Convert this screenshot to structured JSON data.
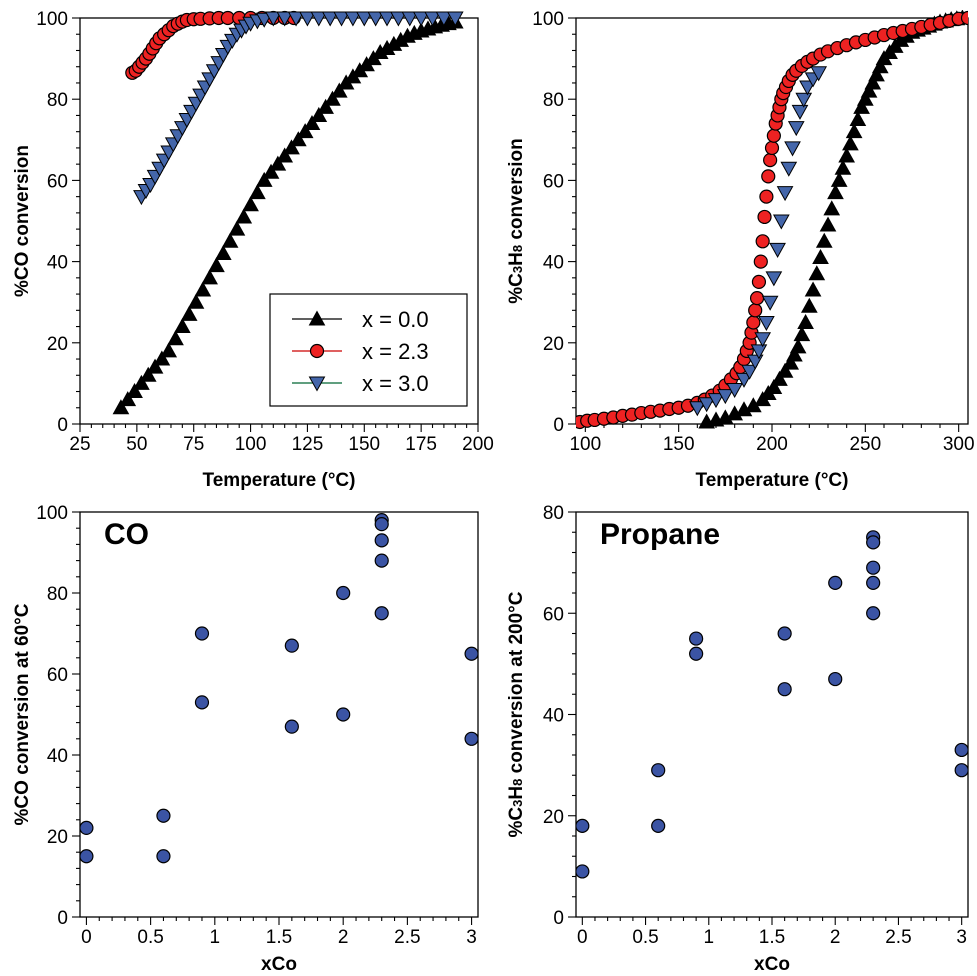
{
  "chart_data": [
    {
      "id": "p1",
      "type": "scatter",
      "xlabel": "Temperature (°C)",
      "ylabel": "%CO conversion",
      "xlim": [
        25,
        200
      ],
      "ylim": [
        0,
        100
      ],
      "xticks": [
        25,
        50,
        75,
        100,
        125,
        150,
        175,
        200
      ],
      "yticks": [
        0,
        20,
        40,
        60,
        80,
        100
      ],
      "xminor": 5,
      "yminor": 5,
      "grid": false,
      "legend_position": "bottom-right",
      "series": [
        {
          "name": "x = 0.0",
          "marker": "triangle-up",
          "color": "#000000",
          "line_color": "#000000",
          "x": [
            43,
            46,
            49,
            52,
            55,
            58,
            61,
            64,
            67,
            70,
            73,
            76,
            79,
            82,
            85,
            88,
            91,
            94,
            97,
            100,
            103,
            106,
            109,
            112,
            115,
            118,
            121,
            124,
            127,
            130,
            133,
            136,
            139,
            142,
            145,
            148,
            151,
            154,
            157,
            160,
            163,
            166,
            169,
            172,
            175,
            178,
            181,
            184,
            187,
            190
          ],
          "y": [
            4,
            6,
            8,
            10,
            12,
            14,
            16,
            18,
            21,
            24,
            27,
            30,
            33,
            36,
            39,
            42,
            45,
            48,
            51,
            54,
            57,
            60,
            62,
            64,
            66,
            68,
            70,
            72,
            74,
            76,
            78,
            80,
            82,
            84,
            85.5,
            87,
            88.5,
            90,
            91.5,
            92.5,
            93.5,
            94.5,
            95.5,
            96.2,
            96.8,
            97.3,
            97.8,
            98.2,
            98.6,
            99
          ]
        },
        {
          "name": "x = 2.3",
          "marker": "circle",
          "color": "#ee2222",
          "line_color": "#cc0000",
          "x": [
            48,
            49.5,
            51,
            52.5,
            54,
            55.5,
            57,
            58.5,
            60,
            62,
            64,
            66,
            68,
            70,
            72,
            75,
            78,
            82,
            86,
            90,
            95,
            100,
            105,
            110,
            115,
            119
          ],
          "y": [
            86.5,
            87,
            88,
            89,
            90,
            91.2,
            92.5,
            93.8,
            95,
            96,
            97,
            98,
            98.6,
            99.1,
            99.5,
            99.7,
            99.8,
            99.9,
            100,
            100,
            100,
            100,
            100,
            100,
            100,
            100
          ]
        },
        {
          "name": "x = 3.0",
          "marker": "triangle-down",
          "color": "#4466aa",
          "line_color": "#006633",
          "x": [
            52,
            54,
            56,
            58,
            60,
            62,
            64,
            66,
            68,
            70,
            72,
            74,
            76,
            78,
            80,
            82,
            84,
            86,
            88,
            90,
            92,
            94,
            96,
            98,
            100,
            103,
            106,
            110,
            115,
            120,
            125,
            130,
            135,
            140,
            145,
            150,
            155,
            160,
            165,
            170,
            175,
            180,
            185,
            190
          ],
          "y": [
            56,
            57.5,
            59,
            61,
            63,
            65,
            67,
            69,
            71,
            73,
            75,
            77,
            79,
            81,
            83,
            85,
            87,
            89,
            91,
            93,
            94.5,
            96,
            97,
            98,
            98.7,
            99.3,
            99.7,
            100,
            100,
            100,
            100,
            100,
            100,
            100,
            100,
            100,
            100,
            100,
            100,
            100,
            100,
            100,
            100,
            100
          ]
        }
      ]
    },
    {
      "id": "p2",
      "type": "scatter",
      "xlabel": "Temperature (°C)",
      "ylabel_parts": [
        "%C",
        "3",
        "H",
        "8",
        " conversion"
      ],
      "xlim": [
        95,
        305
      ],
      "ylim": [
        0,
        100
      ],
      "xticks": [
        100,
        150,
        200,
        250,
        300
      ],
      "yticks": [
        0,
        20,
        40,
        60,
        80,
        100
      ],
      "xminor": 5,
      "yminor": 5,
      "grid": false,
      "series": [
        {
          "name": "x = 0.0",
          "marker": "triangle-up",
          "color": "#000000",
          "x": [
            165,
            170,
            175,
            180,
            185,
            190,
            195,
            198,
            201,
            204,
            207,
            210,
            212,
            214,
            216,
            218,
            220,
            222,
            224,
            226,
            228,
            230,
            232,
            234,
            236,
            238,
            240,
            242,
            244,
            246,
            248,
            250,
            252,
            254,
            256,
            258,
            260,
            263,
            266,
            269,
            272,
            275,
            278,
            281,
            284,
            287,
            290,
            293,
            296,
            299,
            302
          ],
          "y": [
            0.5,
            1,
            1.5,
            2.5,
            3.5,
            4.5,
            6,
            7.5,
            9,
            11,
            13,
            15,
            17,
            19,
            22,
            25,
            29,
            33,
            37,
            41,
            45,
            49,
            53,
            57,
            60,
            63,
            66,
            69,
            72,
            75,
            78,
            80,
            82,
            84,
            86,
            88,
            90,
            91.5,
            93,
            94.5,
            95.5,
            96.5,
            97,
            97.5,
            98,
            98.5,
            99,
            99.3,
            99.6,
            99.8,
            100
          ]
        },
        {
          "name": "x = 2.3",
          "marker": "circle",
          "color": "#ee2222",
          "x": [
            97,
            101,
            105,
            110,
            115,
            120,
            125,
            130,
            135,
            140,
            145,
            150,
            155,
            160,
            164,
            168,
            172,
            175,
            178,
            181,
            183,
            185,
            186.5,
            188,
            189,
            190,
            191,
            192,
            193,
            194,
            195,
            196,
            197,
            198,
            199,
            200,
            201,
            202,
            203,
            204,
            205,
            206,
            207.5,
            209,
            211,
            213,
            216,
            219,
            222,
            226,
            230,
            235,
            240,
            245,
            250,
            255,
            260,
            265,
            270,
            275,
            280,
            285,
            290,
            295,
            300,
            305
          ],
          "y": [
            0.5,
            0.8,
            1,
            1.3,
            1.6,
            2,
            2.3,
            2.7,
            3,
            3.3,
            3.7,
            4,
            4.5,
            5.2,
            6,
            7,
            8.2,
            9.5,
            11,
            12.5,
            14,
            16,
            18,
            20,
            22.5,
            25,
            28,
            31,
            35,
            40,
            45,
            51,
            56,
            61,
            65,
            68,
            71,
            74,
            76,
            78,
            80,
            81.5,
            83,
            84.5,
            86,
            87,
            88.2,
            89.2,
            90,
            91,
            91.8,
            92.6,
            93.3,
            94,
            94.6,
            95.2,
            95.8,
            96.3,
            96.8,
            97.3,
            97.8,
            98.3,
            98.8,
            99.3,
            99.8,
            100
          ]
        },
        {
          "name": "x = 3.0",
          "marker": "triangle-down",
          "color": "#4466aa",
          "x": [
            160,
            165,
            170,
            175,
            180,
            185,
            188,
            191,
            193,
            195,
            197,
            199,
            201,
            203,
            205,
            207,
            209,
            211,
            213,
            215,
            217,
            219,
            222,
            225
          ],
          "y": [
            4,
            5,
            6,
            7,
            8.5,
            11,
            13,
            15.5,
            18,
            21,
            25,
            30,
            36,
            43,
            50,
            57,
            63,
            68,
            73,
            77,
            80,
            83,
            85,
            86.5
          ]
        }
      ]
    },
    {
      "id": "p3",
      "type": "scatter",
      "annotation": "CO",
      "xlabel": "xCo",
      "ylabel": "%CO conversion at 60°C",
      "xlim": [
        -0.05,
        3.05
      ],
      "ylim": [
        0,
        100
      ],
      "xticks": [
        0,
        0.5,
        1,
        1.5,
        2,
        2.5,
        3
      ],
      "yticks": [
        0,
        20,
        40,
        60,
        80,
        100
      ],
      "xminor": 5,
      "yminor": 5,
      "grid": false,
      "series": [
        {
          "marker": "circle",
          "color": "#3b54a4",
          "x": [
            0,
            0,
            0.6,
            0.6,
            0.9,
            0.9,
            1.6,
            1.6,
            2.0,
            2.0,
            2.3,
            2.3,
            2.3,
            2.3,
            2.3,
            3.0,
            3.0
          ],
          "y": [
            22,
            15,
            25,
            15,
            70,
            53,
            67,
            47,
            80,
            50,
            98,
            97,
            93,
            88,
            75,
            65,
            44
          ]
        }
      ]
    },
    {
      "id": "p4",
      "type": "scatter",
      "annotation": "Propane",
      "xlabel": "xCo",
      "ylabel_parts": [
        "%C",
        "3",
        "H",
        "8",
        " conversion at 200°C"
      ],
      "xlim": [
        -0.05,
        3.05
      ],
      "ylim": [
        0,
        80
      ],
      "xticks": [
        0,
        0.5,
        1,
        1.5,
        2,
        2.5,
        3
      ],
      "yticks": [
        0,
        20,
        40,
        60,
        80
      ],
      "xminor": 5,
      "yminor": 5,
      "grid": false,
      "series": [
        {
          "marker": "circle",
          "color": "#3b54a4",
          "x": [
            0,
            0,
            0.6,
            0.6,
            0.9,
            0.9,
            1.6,
            1.6,
            2.0,
            2.0,
            2.3,
            2.3,
            2.3,
            2.3,
            2.3,
            3.0,
            3.0
          ],
          "y": [
            18,
            9,
            29,
            18,
            55,
            52,
            56,
            45,
            66,
            47,
            75,
            74,
            69,
            66,
            60,
            33,
            29
          ]
        }
      ]
    }
  ]
}
